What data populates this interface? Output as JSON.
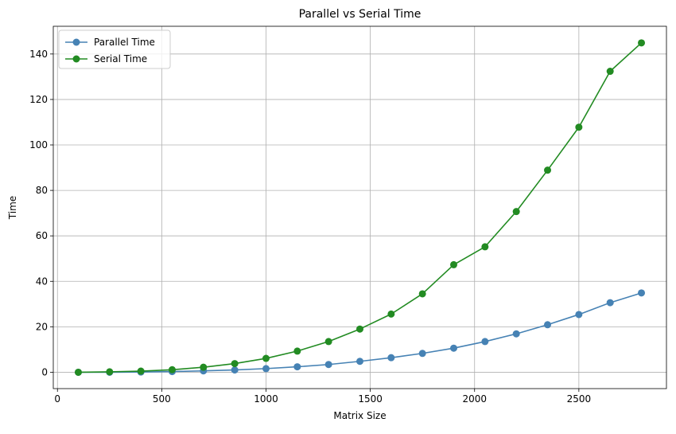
{
  "chart_data": {
    "type": "line",
    "title": "Parallel vs Serial Time",
    "xlabel": "Matrix Size",
    "ylabel": "Time",
    "xlim": [
      -20,
      2920
    ],
    "ylim": [
      -7.2,
      152.2
    ],
    "xticks": [
      0,
      500,
      1000,
      1500,
      2000,
      2500
    ],
    "yticks": [
      0,
      20,
      40,
      60,
      80,
      100,
      120,
      140
    ],
    "grid": true,
    "legend": "top-left",
    "x": [
      100,
      250,
      400,
      550,
      700,
      850,
      1000,
      1150,
      1300,
      1450,
      1600,
      1750,
      1900,
      2050,
      2200,
      2350,
      2500,
      2650,
      2800
    ],
    "series": [
      {
        "name": "Parallel Time",
        "color": "#4682b4",
        "marker": "circle",
        "values": [
          0.0,
          0.0,
          0.1,
          0.3,
          0.6,
          1.0,
          1.6,
          2.4,
          3.4,
          4.8,
          6.4,
          8.3,
          10.6,
          13.5,
          16.9,
          20.9,
          25.4,
          30.6,
          34.9
        ]
      },
      {
        "name": "Serial Time",
        "color": "#228b22",
        "marker": "circle",
        "values": [
          0.0,
          0.2,
          0.5,
          1.1,
          2.2,
          3.8,
          6.1,
          9.3,
          13.5,
          19.0,
          25.6,
          34.5,
          47.3,
          55.2,
          70.7,
          88.9,
          107.8,
          132.4,
          144.9
        ]
      }
    ]
  }
}
